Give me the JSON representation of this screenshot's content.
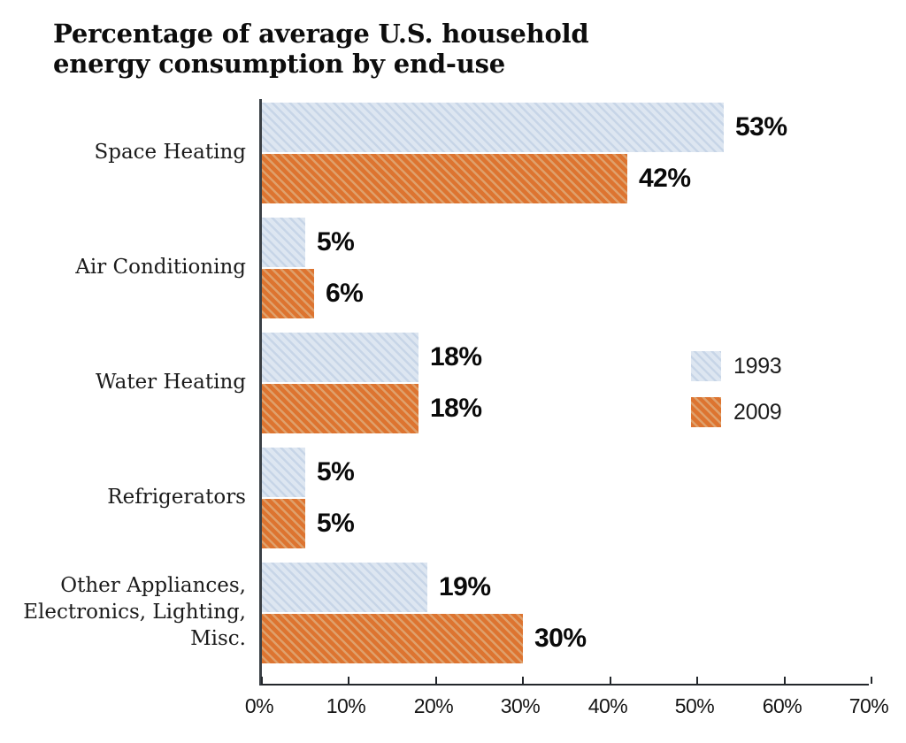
{
  "header": {
    "title": "Percentage of average U.S. household\nenergy consumption by end-use"
  },
  "legend": {
    "items": [
      {
        "label": "1993"
      },
      {
        "label": "2009"
      }
    ]
  },
  "colors": {
    "series_1993_base": "#dde6f1",
    "series_1993_stripe": "#c7d5e7",
    "series_2009_base": "#dd7430",
    "series_2009_stripe": "#dfa06b",
    "axis": "#23272b",
    "text": "#0d0d0d"
  },
  "chart_data": {
    "type": "bar",
    "orientation": "horizontal",
    "title": "Percentage of average U.S. household energy consumption by end-use",
    "categories": [
      "Space Heating",
      "Air Conditioning",
      "Water Heating",
      "Refrigerators",
      "Other Appliances,\nElectronics, Lighting, Misc."
    ],
    "series": [
      {
        "name": "1993",
        "color_base": "#dde6f1",
        "color_stripe": "#c7d5e7",
        "values": [
          53,
          5,
          18,
          5,
          19
        ]
      },
      {
        "name": "2009",
        "color_base": "#dd7430",
        "color_stripe": "#dfa06b",
        "values": [
          42,
          6,
          18,
          5,
          30
        ]
      }
    ],
    "value_label_suffix": "%",
    "x_ticks": [
      "0%",
      "10%",
      "20%",
      "30%",
      "40%",
      "50%",
      "60%",
      "70%"
    ],
    "xlim": [
      0,
      70
    ],
    "grid": false,
    "hatch": "diagonal-backslash",
    "legend_position": "middle-right",
    "xlabel": "",
    "ylabel": ""
  }
}
